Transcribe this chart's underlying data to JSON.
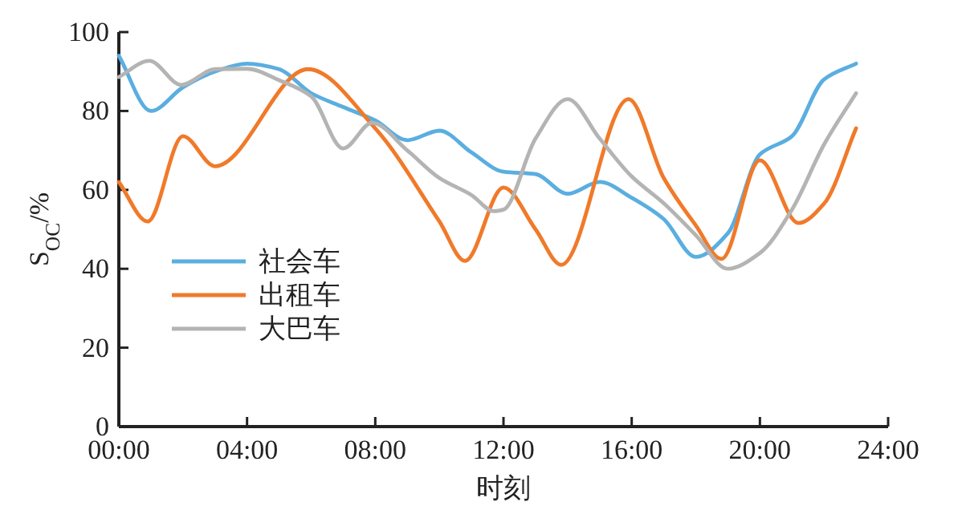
{
  "chart_data": {
    "type": "line",
    "xlabel": "时刻",
    "ylabel": "S$_{OC}$/%",
    "xlim": [
      0,
      24
    ],
    "xticks": [
      {
        "value": 0,
        "label": "00:00"
      },
      {
        "value": 4,
        "label": "04:00"
      },
      {
        "value": 8,
        "label": "08:00"
      },
      {
        "value": 12,
        "label": "12:00"
      },
      {
        "value": 16,
        "label": "16:00"
      },
      {
        "value": 20,
        "label": "20:00"
      },
      {
        "value": 24,
        "label": "24:00"
      }
    ],
    "ylim": [
      0,
      100
    ],
    "yticks": [
      0,
      20,
      40,
      60,
      80,
      100
    ],
    "grid": false,
    "legend": "left",
    "marker": "none",
    "line_style": "solid",
    "series": [
      {
        "name": "社会车",
        "color": "#5aaee0",
        "x": [
          0,
          1,
          2,
          3,
          4,
          5,
          6,
          7,
          8,
          9,
          10,
          11,
          12,
          13,
          14,
          15,
          16,
          17,
          18,
          19,
          20,
          21,
          22,
          23
        ],
        "values": [
          94,
          80,
          86,
          90,
          92,
          90.6,
          84.5,
          81,
          77.6,
          72.6,
          75,
          69.5,
          64.6,
          64,
          59,
          62,
          58,
          52.6,
          43,
          49,
          69,
          73.6,
          88,
          92
        ]
      },
      {
        "name": "出租车",
        "color": "#f07a2a",
        "x": [
          0,
          0.9,
          2,
          3,
          5.9,
          8,
          10,
          10.8,
          12,
          13,
          13.8,
          15.9,
          17,
          18,
          18.8,
          20,
          21.2,
          22,
          23
        ],
        "values": [
          62,
          52,
          73.6,
          66,
          90.6,
          75.6,
          52,
          42,
          60.6,
          50,
          41,
          83,
          63,
          51,
          42.5,
          67.5,
          51.6,
          56.5,
          75.6
        ]
      },
      {
        "name": "大巴车",
        "color": "#b4b4b4",
        "x": [
          0,
          0.95,
          1.95,
          3,
          4,
          5,
          6,
          7,
          7.9,
          9,
          10,
          11,
          11.7,
          12,
          13,
          14,
          15,
          16,
          17,
          18,
          19,
          20,
          21,
          22,
          23
        ],
        "values": [
          88.6,
          92.7,
          86.6,
          90.6,
          90.7,
          87.8,
          83.7,
          70.5,
          77,
          70,
          63,
          58.7,
          54.6,
          55,
          73,
          83,
          73,
          63.4,
          56.6,
          48.5,
          40,
          44,
          55,
          71.5,
          84.5
        ]
      }
    ]
  }
}
